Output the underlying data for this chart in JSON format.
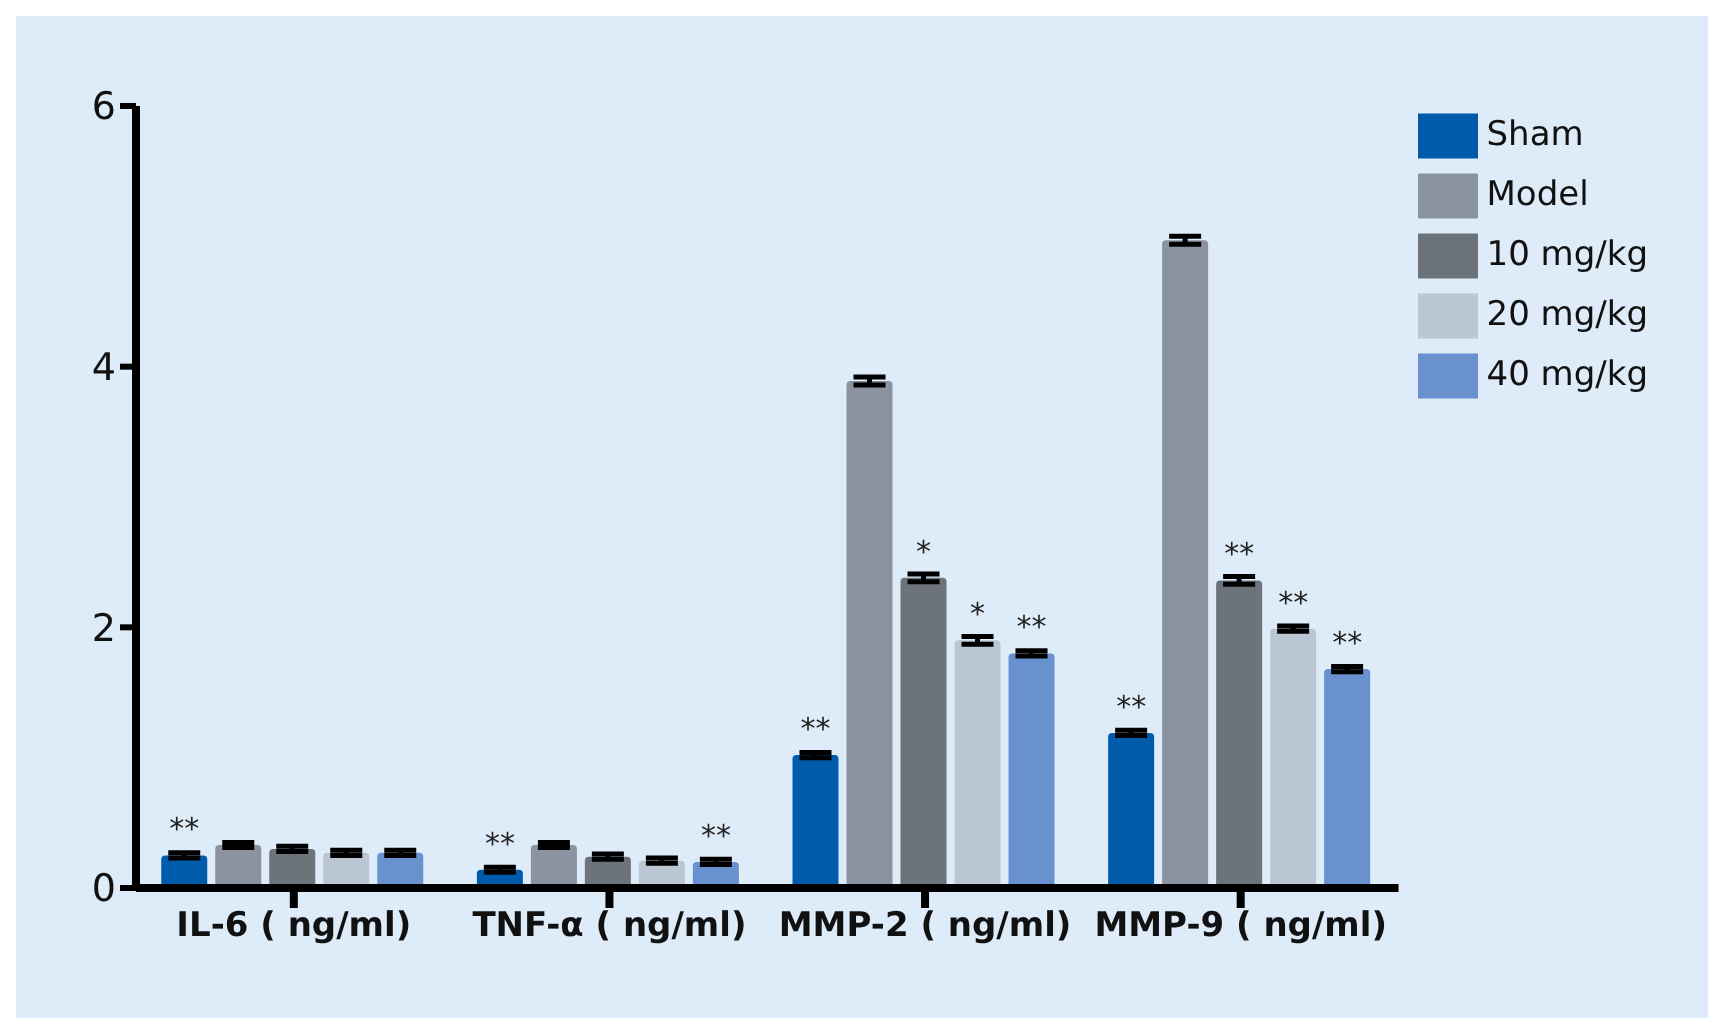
{
  "chart_data": {
    "type": "bar",
    "categories": [
      "IL-6 ( ng/ml)",
      "TNF-α ( ng/ml)",
      "MMP-2 ( ng/ml)",
      "MMP-9 ( ng/ml)"
    ],
    "series": [
      {
        "name": "Sham",
        "color": "#005bab",
        "values": [
          0.25,
          0.14,
          1.02,
          1.19
        ],
        "errors": [
          0.02,
          0.02,
          0.02,
          0.02
        ],
        "value_labels": [
          "**",
          "**",
          "**",
          "**"
        ]
      },
      {
        "name": "Model",
        "color": "#8a939f",
        "values": [
          0.33,
          0.33,
          3.89,
          4.97
        ],
        "errors": [
          0.02,
          0.02,
          0.03,
          0.03
        ],
        "value_labels": [
          null,
          null,
          null,
          null
        ]
      },
      {
        "name": "10 mg/kg",
        "color": "#6c737b",
        "values": [
          0.3,
          0.24,
          2.38,
          2.36
        ],
        "errors": [
          0.02,
          0.02,
          0.03,
          0.03
        ],
        "value_labels": [
          null,
          null,
          "*",
          "**"
        ]
      },
      {
        "name": "20 mg/kg",
        "color": "#bac7d3",
        "values": [
          0.27,
          0.21,
          1.9,
          1.99
        ],
        "errors": [
          0.02,
          0.02,
          0.03,
          0.02
        ],
        "value_labels": [
          null,
          null,
          "*",
          "**"
        ]
      },
      {
        "name": "40 mg/kg",
        "color": "#6990cf",
        "values": [
          0.27,
          0.2,
          1.8,
          1.68
        ],
        "errors": [
          0.02,
          0.02,
          0.02,
          0.02
        ],
        "value_labels": [
          null,
          "**",
          "**",
          "**"
        ]
      }
    ],
    "ylim": [
      0,
      6
    ],
    "yticks": [
      0,
      2,
      4,
      6
    ],
    "grid": false,
    "legend": "top right"
  }
}
